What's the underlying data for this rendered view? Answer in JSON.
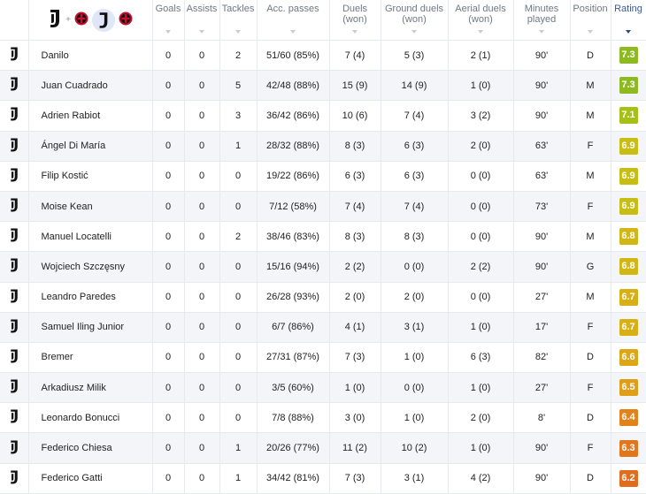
{
  "teams": {
    "home_icon": "juventus-crest-icon",
    "away_icon": "milan-crest-icon",
    "separator": "+"
  },
  "columns": {
    "goals": "Goals",
    "assists": "Assists",
    "tackles": "Tackles",
    "acc_passes": "Acc. passes",
    "duels_won": "Duels (won)",
    "ground_duels_won": "Ground duels (won)",
    "aerial_duels_won": "Aerial duels (won)",
    "minutes_played": "Minutes played",
    "position": "Position",
    "rating": "Rating"
  },
  "colors": {
    "green": "#8dba1f",
    "yellow_green": "#b9c413",
    "yellow": "#d7b414",
    "orange": "#e28a1d",
    "orange_dark": "#e2701d"
  },
  "players": [
    {
      "name": "Danilo",
      "goals": "0",
      "assists": "0",
      "tackles": "2",
      "acc_passes": "51/60 (85%)",
      "duels": "7 (4)",
      "ground": "5 (3)",
      "aerial": "2 (1)",
      "minutes": "90'",
      "position": "D",
      "rating": "7.3",
      "rating_color": "#8dba1f"
    },
    {
      "name": "Juan Cuadrado",
      "goals": "0",
      "assists": "0",
      "tackles": "5",
      "acc_passes": "42/48 (88%)",
      "duels": "15 (9)",
      "ground": "14 (9)",
      "aerial": "1 (0)",
      "minutes": "90'",
      "position": "M",
      "rating": "7.3",
      "rating_color": "#8dba1f"
    },
    {
      "name": "Adrien Rabiot",
      "goals": "0",
      "assists": "0",
      "tackles": "3",
      "acc_passes": "36/42 (86%)",
      "duels": "10 (6)",
      "ground": "7 (4)",
      "aerial": "3 (2)",
      "minutes": "90'",
      "position": "M",
      "rating": "7.1",
      "rating_color": "#a6c016"
    },
    {
      "name": "Ángel Di María",
      "goals": "0",
      "assists": "0",
      "tackles": "1",
      "acc_passes": "28/32 (88%)",
      "duels": "8 (3)",
      "ground": "6 (3)",
      "aerial": "2 (0)",
      "minutes": "63'",
      "position": "F",
      "rating": "6.9",
      "rating_color": "#c8bd12"
    },
    {
      "name": "Filip Kostić",
      "goals": "0",
      "assists": "0",
      "tackles": "0",
      "acc_passes": "19/22 (86%)",
      "duels": "6 (3)",
      "ground": "6 (3)",
      "aerial": "0 (0)",
      "minutes": "63'",
      "position": "M",
      "rating": "6.9",
      "rating_color": "#c8bd12"
    },
    {
      "name": "Moise Kean",
      "goals": "0",
      "assists": "0",
      "tackles": "0",
      "acc_passes": "7/12 (58%)",
      "duels": "7 (4)",
      "ground": "7 (4)",
      "aerial": "0 (0)",
      "minutes": "73'",
      "position": "F",
      "rating": "6.9",
      "rating_color": "#c8bd12"
    },
    {
      "name": "Manuel Locatelli",
      "goals": "0",
      "assists": "0",
      "tackles": "2",
      "acc_passes": "38/46 (83%)",
      "duels": "8 (3)",
      "ground": "8 (3)",
      "aerial": "0 (0)",
      "minutes": "90'",
      "position": "M",
      "rating": "6.8",
      "rating_color": "#d2b714"
    },
    {
      "name": "Wojciech Szczęsny",
      "goals": "0",
      "assists": "0",
      "tackles": "0",
      "acc_passes": "15/16 (94%)",
      "duels": "2 (2)",
      "ground": "0 (0)",
      "aerial": "2 (2)",
      "minutes": "90'",
      "position": "G",
      "rating": "6.8",
      "rating_color": "#d2b714"
    },
    {
      "name": "Leandro Paredes",
      "goals": "0",
      "assists": "0",
      "tackles": "0",
      "acc_passes": "26/28 (93%)",
      "duels": "2 (0)",
      "ground": "2 (0)",
      "aerial": "0 (0)",
      "minutes": "27'",
      "position": "M",
      "rating": "6.7",
      "rating_color": "#d8b015"
    },
    {
      "name": "Samuel Iling Junior",
      "goals": "0",
      "assists": "0",
      "tackles": "0",
      "acc_passes": "6/7 (86%)",
      "duels": "4 (1)",
      "ground": "3 (1)",
      "aerial": "1 (0)",
      "minutes": "17'",
      "position": "F",
      "rating": "6.7",
      "rating_color": "#d8b015"
    },
    {
      "name": "Bremer",
      "goals": "0",
      "assists": "0",
      "tackles": "0",
      "acc_passes": "27/31 (87%)",
      "duels": "7 (3)",
      "ground": "1 (0)",
      "aerial": "6 (3)",
      "minutes": "82'",
      "position": "D",
      "rating": "6.6",
      "rating_color": "#dca616"
    },
    {
      "name": "Arkadiusz Milik",
      "goals": "0",
      "assists": "0",
      "tackles": "0",
      "acc_passes": "3/5 (60%)",
      "duels": "1 (0)",
      "ground": "0 (0)",
      "aerial": "1 (0)",
      "minutes": "27'",
      "position": "F",
      "rating": "6.5",
      "rating_color": "#e09e18"
    },
    {
      "name": "Leonardo Bonucci",
      "goals": "0",
      "assists": "0",
      "tackles": "0",
      "acc_passes": "7/8 (88%)",
      "duels": "3 (0)",
      "ground": "1 (0)",
      "aerial": "2 (0)",
      "minutes": "8'",
      "position": "D",
      "rating": "6.4",
      "rating_color": "#e2821b"
    },
    {
      "name": "Federico Chiesa",
      "goals": "0",
      "assists": "0",
      "tackles": "1",
      "acc_passes": "20/26 (77%)",
      "duels": "11 (2)",
      "ground": "10 (2)",
      "aerial": "1 (0)",
      "minutes": "90'",
      "position": "F",
      "rating": "6.3",
      "rating_color": "#e2761c"
    },
    {
      "name": "Federico Gatti",
      "goals": "0",
      "assists": "0",
      "tackles": "1",
      "acc_passes": "34/42 (81%)",
      "duels": "7 (3)",
      "ground": "3 (1)",
      "aerial": "4 (2)",
      "minutes": "90'",
      "position": "D",
      "rating": "6.2",
      "rating_color": "#e26c1d"
    }
  ]
}
